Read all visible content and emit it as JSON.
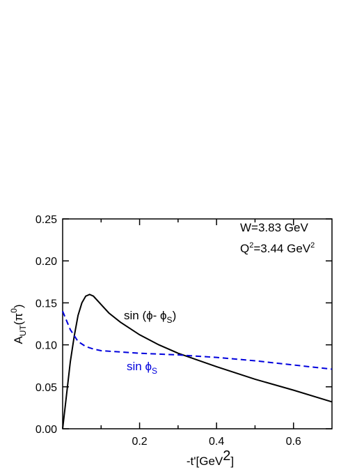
{
  "chart_data": {
    "type": "line",
    "xlabel": [
      "-t'[GeV",
      "2",
      "]"
    ],
    "ylabel": [
      "A",
      "UT",
      "(π",
      "0",
      ")"
    ],
    "annotations": [
      [
        "W=3.83 GeV"
      ],
      [
        "Q",
        "2",
        "=3.44 GeV",
        "2"
      ]
    ],
    "xlim": [
      0,
      0.7
    ],
    "ylim": [
      0,
      0.25
    ],
    "xticks": [
      0.2,
      0.4,
      0.6
    ],
    "xminorticks": [
      0.1,
      0.3,
      0.5
    ],
    "yticks": [
      {
        "value": 0,
        "label": "0.00"
      },
      {
        "value": 0.05,
        "label": "0.05"
      },
      {
        "value": 0.1,
        "label": "0.10"
      },
      {
        "value": 0.15,
        "label": "0.15"
      },
      {
        "value": 0.2,
        "label": "0.20"
      },
      {
        "value": 0.25,
        "label": "0.25"
      }
    ],
    "series": [
      {
        "name": [
          "sin (ϕ- ϕ",
          "S",
          ")"
        ],
        "color": "#000000",
        "dashed": false,
        "x": [
          0,
          0.01,
          0.02,
          0.03,
          0.04,
          0.05,
          0.06,
          0.07,
          0.08,
          0.1,
          0.12,
          0.15,
          0.2,
          0.25,
          0.3,
          0.35,
          0.4,
          0.5,
          0.6,
          0.7
        ],
        "values": [
          0,
          0.04,
          0.08,
          0.11,
          0.135,
          0.15,
          0.158,
          0.16,
          0.158,
          0.148,
          0.138,
          0.127,
          0.112,
          0.1,
          0.09,
          0.082,
          0.074,
          0.059,
          0.046,
          0.032
        ]
      },
      {
        "name": [
          "sin ϕ",
          "S"
        ],
        "color": "#0000dd",
        "dashed": true,
        "x": [
          0,
          0.02,
          0.04,
          0.06,
          0.08,
          0.1,
          0.2,
          0.3,
          0.4,
          0.5,
          0.6,
          0.7
        ],
        "values": [
          0.14,
          0.118,
          0.104,
          0.098,
          0.095,
          0.093,
          0.09,
          0.088,
          0.085,
          0.081,
          0.076,
          0.071
        ]
      }
    ]
  }
}
